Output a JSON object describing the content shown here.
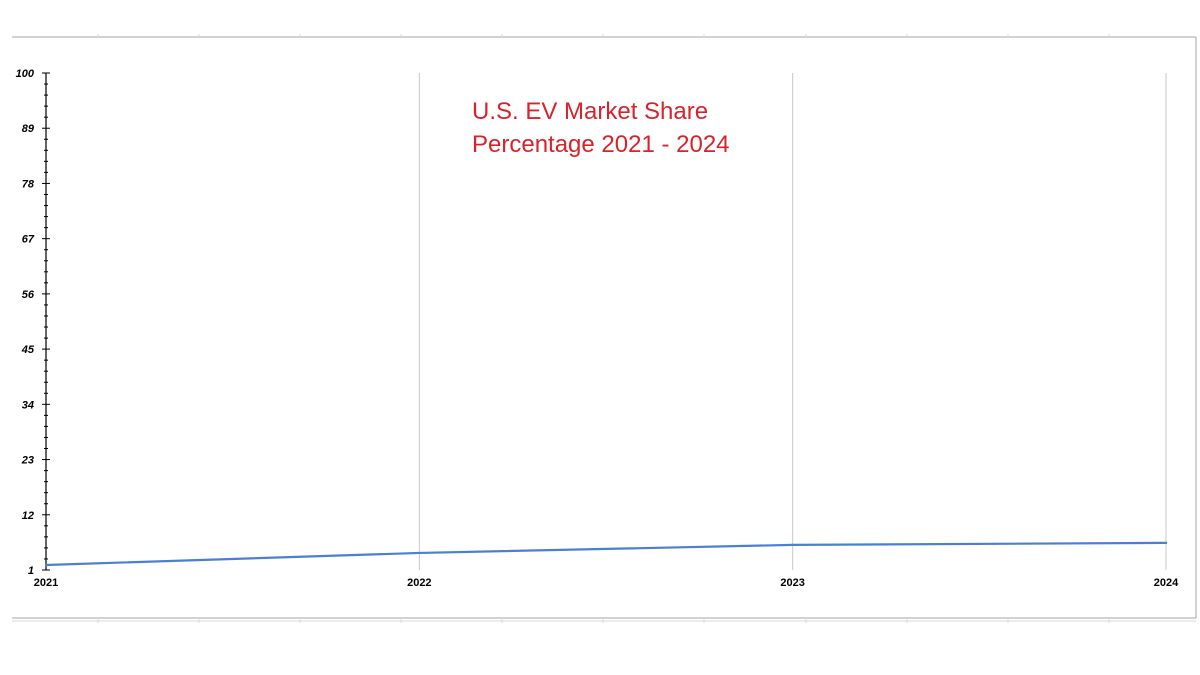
{
  "chart_data": {
    "type": "line",
    "title_lines": [
      "U.S. EV Market Share",
      "Percentage 2021 - 2024"
    ],
    "title_color": "#d8232a",
    "xlabel": "",
    "ylabel": "",
    "categories": [
      "2021",
      "2022",
      "2023",
      "2024"
    ],
    "series": [
      {
        "values": [
          2.0,
          4.4,
          6.0,
          6.4
        ],
        "color": "#4a7fd4"
      }
    ],
    "yticks": [
      1,
      12,
      23,
      34,
      45,
      56,
      67,
      78,
      89,
      100
    ],
    "ylim": [
      1,
      100
    ],
    "grid": "vertical",
    "legend": "none"
  }
}
